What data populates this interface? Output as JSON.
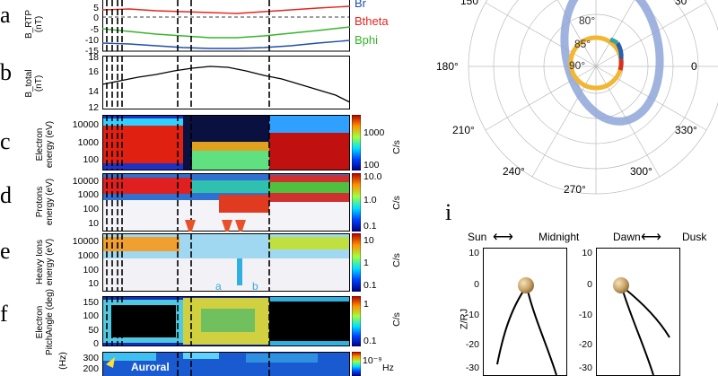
{
  "panel_letters": {
    "a": "a",
    "b": "b",
    "c": "c",
    "d": "d",
    "e": "e",
    "f": "f",
    "i": "i"
  },
  "panel_a": {
    "ylabel": "B_RTP",
    "yunit": "(nT)",
    "ticks": [
      "5",
      "0",
      "-5",
      "-10",
      "-15"
    ],
    "legend": [
      {
        "label": "Br",
        "color": "#1f4fa8"
      },
      {
        "label": "Btheta",
        "color": "#e8251f"
      },
      {
        "label": "Bphi",
        "color": "#37b52b"
      }
    ]
  },
  "panel_b": {
    "ylabel": "B_total",
    "yunit": "(nT)",
    "ticks": [
      "18",
      "16",
      "14",
      "12"
    ]
  },
  "panel_c": {
    "ylabel": "Electron",
    "yunit": "energy (eV)",
    "ticks": [
      "10000",
      "1000",
      "100"
    ],
    "cb_ticks": [
      "1000",
      "100"
    ],
    "cb_unit": "C/s"
  },
  "panel_d": {
    "ylabel": "Protons",
    "yunit": "energy (eV)",
    "ticks": [
      "10000",
      "1000",
      "100",
      "10"
    ],
    "cb_ticks": [
      "10.0",
      "1.0",
      "0.1"
    ],
    "cb_unit": "C/s"
  },
  "panel_e": {
    "ylabel": "Heavy Ions",
    "yunit": "energy (eV)",
    "ticks": [
      "10000",
      "1000",
      "100",
      "10"
    ],
    "cb_ticks": [
      "10",
      "1",
      "0.1"
    ],
    "cb_unit": "C/s",
    "annotations": [
      "a",
      "b"
    ]
  },
  "panel_f": {
    "ylabel": "Electron",
    "yunit": "PitchAngle (deg)",
    "ticks": [
      "150",
      "100",
      "50",
      "0"
    ],
    "cb_ticks": [
      "1",
      "0.1"
    ],
    "cb_unit": "C/s"
  },
  "panel_g": {
    "yunit": "(Hz)",
    "ticks": [
      "300",
      "200"
    ],
    "cb_ticks": [
      "10⁻⁹"
    ],
    "cb_unit": "Hz",
    "annotation": "Auroral"
  },
  "polar": {
    "angle_labels": [
      "150°",
      "30°",
      "180°",
      "0",
      "210°",
      "330°",
      "240°",
      "300°",
      "270°"
    ],
    "lat_labels": [
      "80°",
      "85°",
      "90°"
    ]
  },
  "panel_i": {
    "left": {
      "from": "Sun",
      "to": "Midnight"
    },
    "right": {
      "from": "Dawn",
      "to": "Dusk"
    },
    "ylabel": "Z/RJ",
    "ticks": [
      "10",
      "0",
      "-10",
      "-20",
      "-30"
    ]
  }
}
